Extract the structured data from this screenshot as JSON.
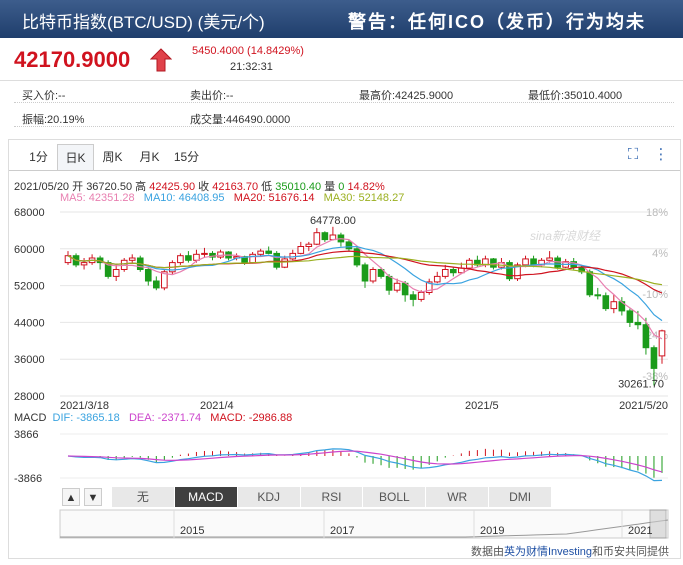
{
  "header": {
    "title": "比特币指数(BTC/USD) (美元/个)",
    "warning": "警告：任何ICO（发币）行为均未"
  },
  "quote": {
    "price": "42170.9000",
    "change": "5450.4000 (14.8429%)",
    "time": "21:32:31"
  },
  "stats": {
    "buy": "买入价:--",
    "sell": "卖出价:--",
    "high": "最高价:42425.9000",
    "low": "最低价:35010.4000",
    "amplitude": "振幅:20.19%",
    "volume": "成交量:446490.0000"
  },
  "tabs": [
    "1分",
    "日K",
    "周K",
    "月K",
    "15分"
  ],
  "active_tab": "日K",
  "info": {
    "date": "2021/05/20",
    "open_label": "开",
    "open": "36720.50",
    "high_label": "高",
    "high": "42425.90",
    "close_label": "收",
    "close": "42163.70",
    "low_label": "低",
    "low": "35010.40",
    "vol_label": "量",
    "vol": "0",
    "pct": "14.82%"
  },
  "ma": {
    "ma5": "MA5: 42351.28",
    "ma10": "MA10: 46408.95",
    "ma20": "MA20: 51676.14",
    "ma30": "MA30: 52148.27"
  },
  "macd": {
    "label": "MACD",
    "dif": "DIF: -3865.18",
    "dea": "DEA: -2371.74",
    "macd": "MACD: -2986.88"
  },
  "indicators": [
    "无",
    "MACD",
    "KDJ",
    "RSI",
    "BOLL",
    "WR",
    "DMI"
  ],
  "active_indicator": "MACD",
  "colors": {
    "up": "#d0131f",
    "down": "#1a9b1a",
    "ma5": "#e87fb0",
    "ma10": "#3aa3e0",
    "ma20": "#d0131f",
    "ma30": "#9bb021"
  },
  "chart_data": {
    "type": "candlestick",
    "y_ticks": [
      "68000",
      "60000",
      "52000",
      "44000",
      "36000",
      "28000"
    ],
    "pct_ticks": [
      "18%",
      "4%",
      "-10%",
      "-24%",
      "-38%"
    ],
    "x_ticks": [
      "2021/3/18",
      "2021/4",
      "2021/5",
      "2021/5/20"
    ],
    "macd_ticks": [
      "3866",
      "-3866"
    ],
    "overview_ticks": [
      "2015",
      "2017",
      "2019",
      "2021"
    ],
    "annotations": {
      "max": "64778.00",
      "min": "30261.70"
    },
    "watermark": "sina新浪财经",
    "ylim": [
      28000,
      68000
    ],
    "candles": [
      [
        57000,
        58500,
        59500,
        56500
      ],
      [
        58500,
        56500,
        59000,
        56000
      ],
      [
        56500,
        57000,
        58000,
        55500
      ],
      [
        57000,
        58000,
        58800,
        56500
      ],
      [
        58000,
        57000,
        58500,
        55500
      ],
      [
        57000,
        54000,
        57500,
        53500
      ],
      [
        54000,
        55500,
        56500,
        53000
      ],
      [
        55500,
        57500,
        58000,
        55000
      ],
      [
        57500,
        58000,
        58800,
        57000
      ],
      [
        58000,
        55500,
        58500,
        55000
      ],
      [
        55500,
        53000,
        56000,
        52000
      ],
      [
        53000,
        51500,
        54000,
        51000
      ],
      [
        51500,
        55000,
        55500,
        51000
      ],
      [
        55000,
        57000,
        57500,
        54500
      ],
      [
        57000,
        58500,
        59000,
        56500
      ],
      [
        58500,
        57500,
        59500,
        57000
      ],
      [
        57500,
        58800,
        59800,
        57000
      ],
      [
        58800,
        59000,
        60200,
        58000
      ],
      [
        59000,
        58200,
        59500,
        57500
      ],
      [
        58200,
        59300,
        59800,
        57800
      ],
      [
        59300,
        58000,
        59500,
        57500
      ],
      [
        58000,
        58300,
        59000,
        57500
      ],
      [
        58300,
        57000,
        58500,
        56500
      ],
      [
        57000,
        58800,
        59300,
        56800
      ],
      [
        58800,
        59500,
        60000,
        58500
      ],
      [
        59500,
        59000,
        60500,
        58800
      ],
      [
        59000,
        56000,
        59500,
        55500
      ],
      [
        56000,
        57800,
        58500,
        55800
      ],
      [
        57800,
        59000,
        59800,
        57500
      ],
      [
        59000,
        60500,
        61500,
        58800
      ],
      [
        60500,
        61000,
        61500,
        59500
      ],
      [
        61000,
        63500,
        64500,
        60800
      ],
      [
        63500,
        62000,
        63800,
        61500
      ],
      [
        62000,
        63000,
        64778,
        61800
      ],
      [
        63000,
        61500,
        63500,
        60500
      ],
      [
        61500,
        60000,
        62000,
        59500
      ],
      [
        60000,
        56500,
        60500,
        56000
      ],
      [
        56500,
        53000,
        57000,
        51500
      ],
      [
        53000,
        55500,
        56000,
        52500
      ],
      [
        55500,
        54000,
        56000,
        53500
      ],
      [
        54000,
        51000,
        54500,
        50000
      ],
      [
        51000,
        52500,
        53500,
        50500
      ],
      [
        52500,
        50000,
        53000,
        48500
      ],
      [
        50000,
        49000,
        50800,
        47500
      ],
      [
        49000,
        50500,
        51000,
        48500
      ],
      [
        50500,
        52800,
        53500,
        50000
      ],
      [
        52800,
        54000,
        55000,
        52500
      ],
      [
        54000,
        55500,
        56500,
        53500
      ],
      [
        55500,
        54800,
        56000,
        54000
      ],
      [
        54800,
        55800,
        57000,
        54500
      ],
      [
        55800,
        57500,
        58000,
        55500
      ],
      [
        57500,
        56500,
        58500,
        56000
      ],
      [
        56500,
        57800,
        58500,
        56000
      ],
      [
        57800,
        56000,
        58000,
        55500
      ],
      [
        56000,
        57000,
        58000,
        55500
      ],
      [
        57000,
        53500,
        57500,
        53000
      ],
      [
        53500,
        56500,
        57000,
        53000
      ],
      [
        56500,
        57800,
        58500,
        56000
      ],
      [
        57800,
        56500,
        58500,
        56000
      ],
      [
        56500,
        57500,
        58000,
        56000
      ],
      [
        57500,
        58000,
        59500,
        57000
      ],
      [
        58000,
        56000,
        58500,
        55500
      ],
      [
        56000,
        57200,
        57800,
        55800
      ],
      [
        57200,
        56000,
        58000,
        55500
      ],
      [
        56000,
        55000,
        56500,
        54500
      ],
      [
        55000,
        50000,
        55500,
        49500
      ],
      [
        50000,
        49800,
        51500,
        49000
      ],
      [
        49800,
        47000,
        50500,
        46500
      ],
      [
        47000,
        48500,
        50000,
        46000
      ],
      [
        48500,
        46500,
        49500,
        45500
      ],
      [
        46500,
        44000,
        47000,
        43000
      ],
      [
        44000,
        43500,
        46500,
        42500
      ],
      [
        43500,
        38500,
        45000,
        37000
      ],
      [
        38500,
        34000,
        39000,
        30262
      ],
      [
        36720,
        42164,
        42426,
        35010
      ]
    ]
  }
}
